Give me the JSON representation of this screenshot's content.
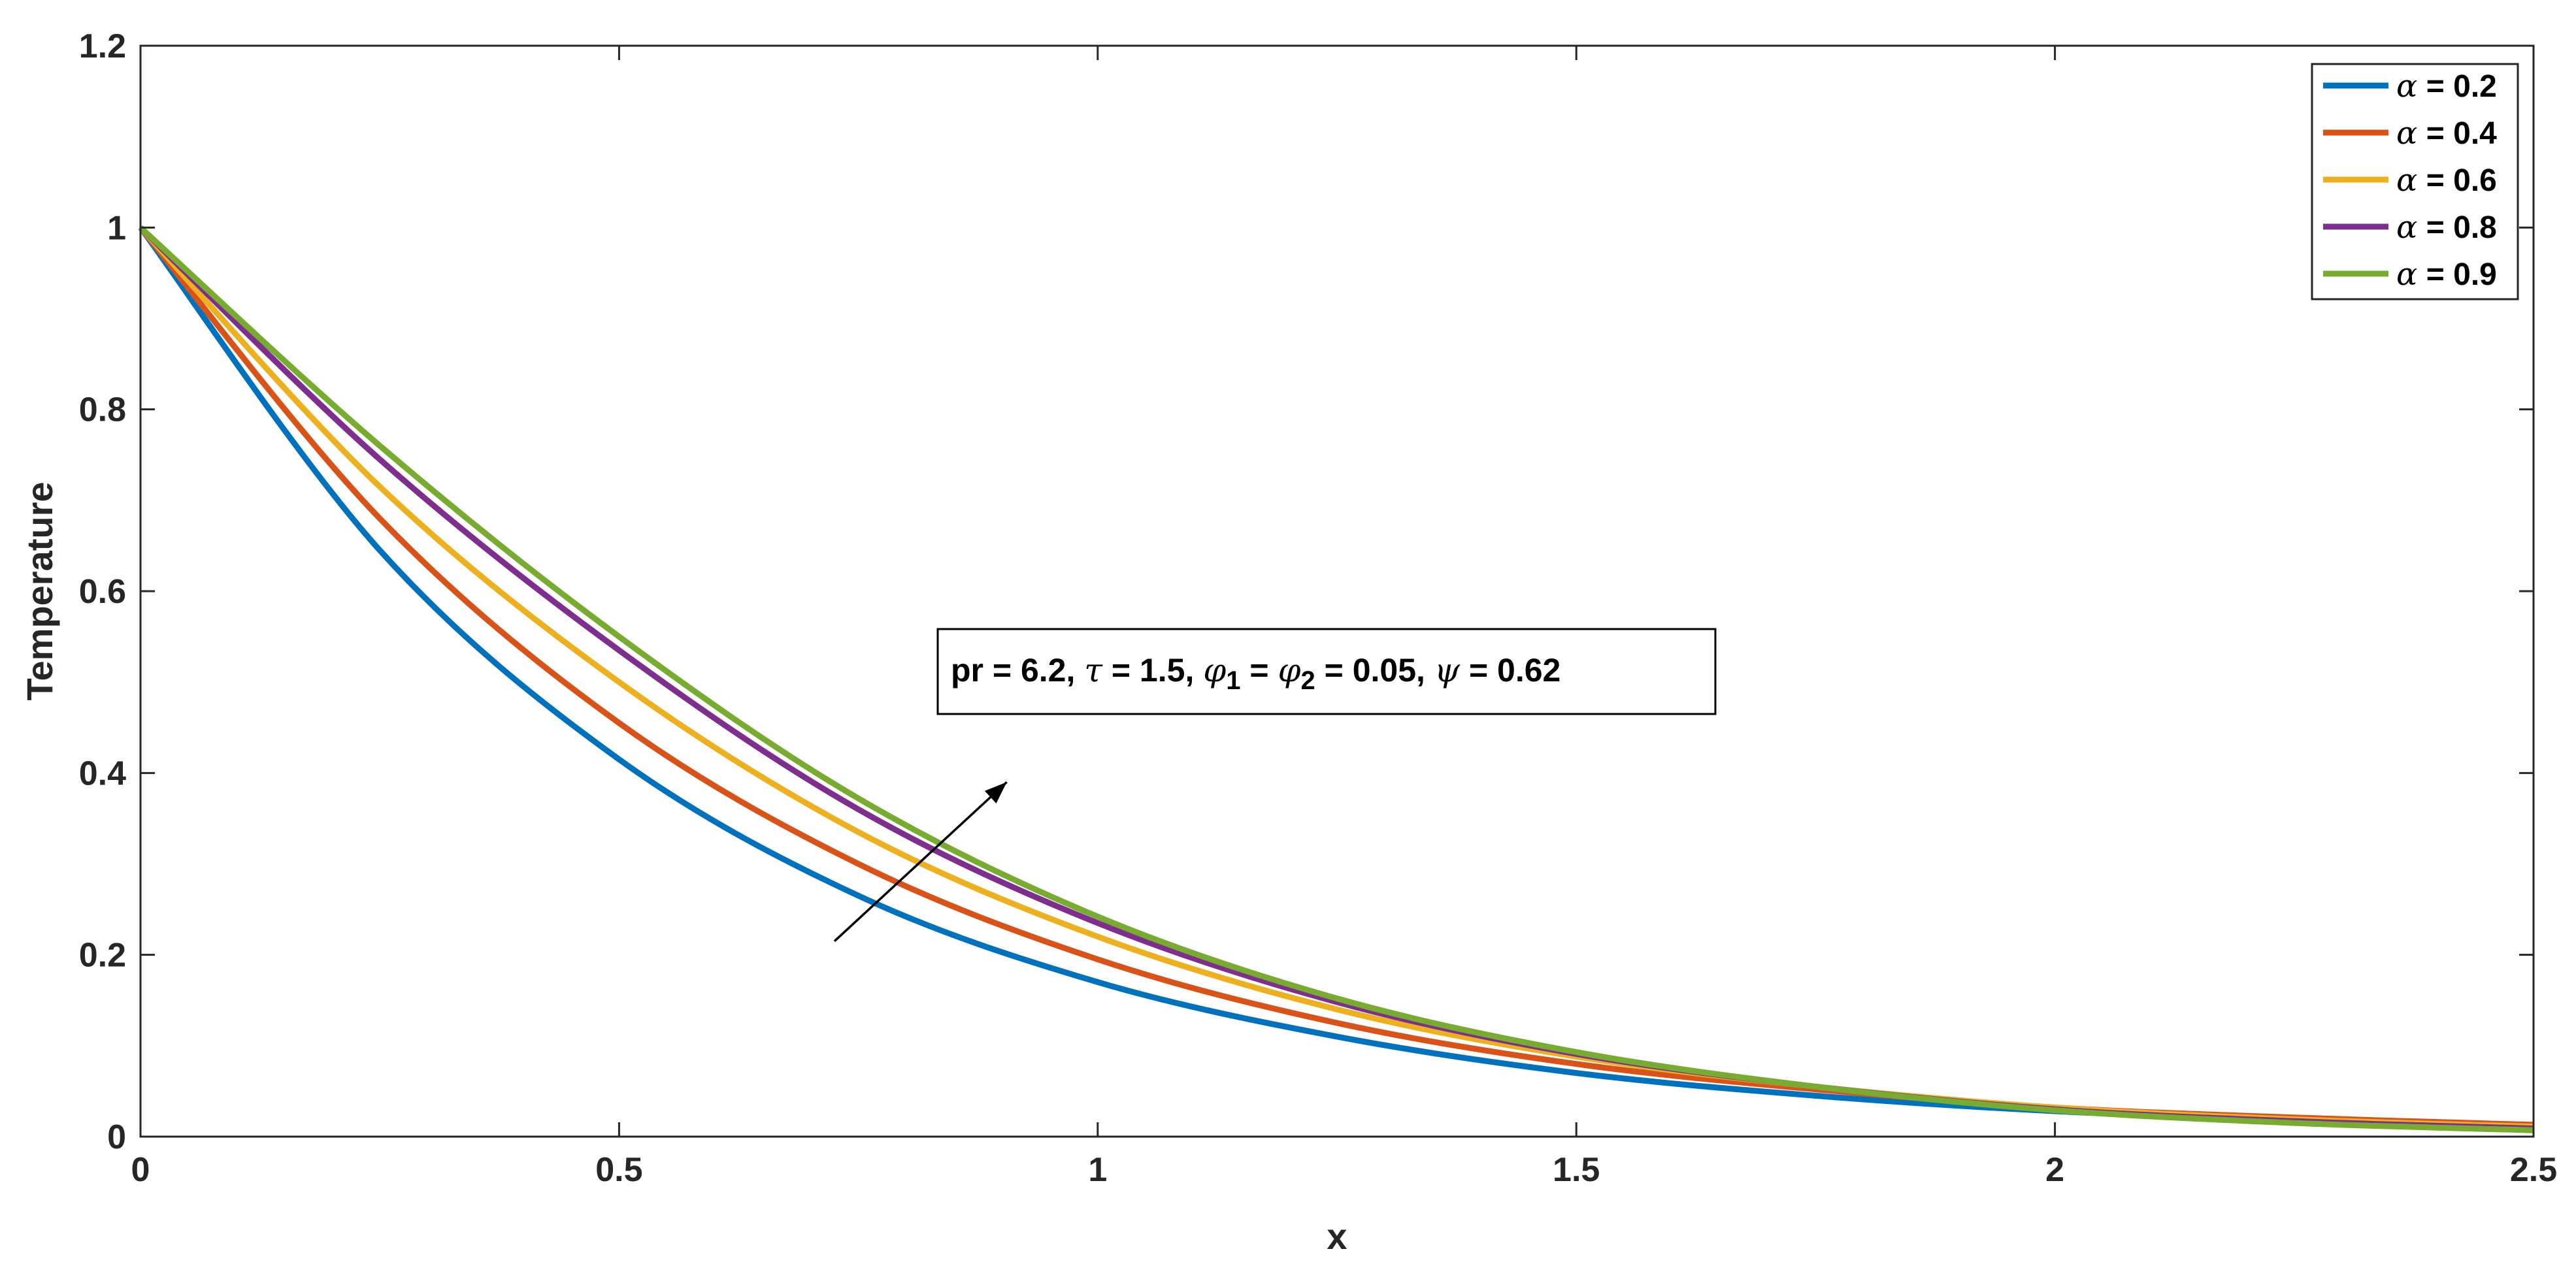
{
  "chart_data": {
    "type": "line",
    "xlabel": "x",
    "ylabel": "Temperature",
    "xlim": [
      0,
      2.5
    ],
    "ylim": [
      0,
      1.2
    ],
    "xticks": [
      "0",
      "0.5",
      "1",
      "1.5",
      "2",
      "2.5"
    ],
    "yticks": [
      "0",
      "0.2",
      "0.4",
      "0.6",
      "0.8",
      "1",
      "1.2"
    ],
    "grid": false,
    "legend_position": "top-right",
    "x": [
      0,
      0.25,
      0.5,
      0.75,
      1.0,
      1.25,
      1.5,
      1.75,
      2.0,
      2.25,
      2.5
    ],
    "series": [
      {
        "name": "α = 0.2",
        "color": "#0072BD",
        "values": [
          1.0,
          0.645,
          0.415,
          0.265,
          0.17,
          0.11,
          0.07,
          0.045,
          0.028,
          0.018,
          0.012
        ]
      },
      {
        "name": "α = 0.4",
        "color": "#D95319",
        "values": [
          1.0,
          0.68,
          0.455,
          0.3,
          0.195,
          0.125,
          0.08,
          0.052,
          0.032,
          0.021,
          0.013
        ]
      },
      {
        "name": "α = 0.6",
        "color": "#EDB120",
        "values": [
          1.0,
          0.715,
          0.5,
          0.335,
          0.22,
          0.14,
          0.088,
          0.055,
          0.032,
          0.019,
          0.011
        ]
      },
      {
        "name": "α = 0.8",
        "color": "#7E2F8E",
        "values": [
          1.0,
          0.745,
          0.535,
          0.36,
          0.235,
          0.148,
          0.091,
          0.055,
          0.03,
          0.017,
          0.009
        ]
      },
      {
        "name": "α = 0.9",
        "color": "#77AC30",
        "values": [
          1.0,
          0.76,
          0.55,
          0.372,
          0.242,
          0.152,
          0.093,
          0.055,
          0.029,
          0.015,
          0.007
        ]
      }
    ],
    "legend": [
      {
        "symbol": "α",
        "text": " = 0.2"
      },
      {
        "symbol": "α",
        "text": " = 0.4"
      },
      {
        "symbol": "α",
        "text": " = 0.6"
      },
      {
        "symbol": "α",
        "text": " = 0.8"
      },
      {
        "symbol": "α",
        "text": " = 0.9"
      }
    ],
    "annotation": {
      "parts": [
        {
          "t": "pr = 6.2, ",
          "sym": false,
          "sub": false
        },
        {
          "t": "τ",
          "sym": true,
          "sub": false
        },
        {
          "t": " = 1.5, ",
          "sym": false,
          "sub": false
        },
        {
          "t": "φ",
          "sym": true,
          "sub": false
        },
        {
          "t": "1",
          "sym": false,
          "sub": true
        },
        {
          "t": " = ",
          "sym": false,
          "sub": false
        },
        {
          "t": "φ",
          "sym": true,
          "sub": false
        },
        {
          "t": "2",
          "sym": false,
          "sub": true
        },
        {
          "t": " = 0.05, ",
          "sym": false,
          "sub": false
        },
        {
          "t": "ψ",
          "sym": true,
          "sub": false
        },
        {
          "t": " = 0.62",
          "sym": false,
          "sub": false
        }
      ]
    },
    "arrow": {
      "from": [
        0.725,
        0.215
      ],
      "to": [
        0.905,
        0.39
      ]
    }
  }
}
